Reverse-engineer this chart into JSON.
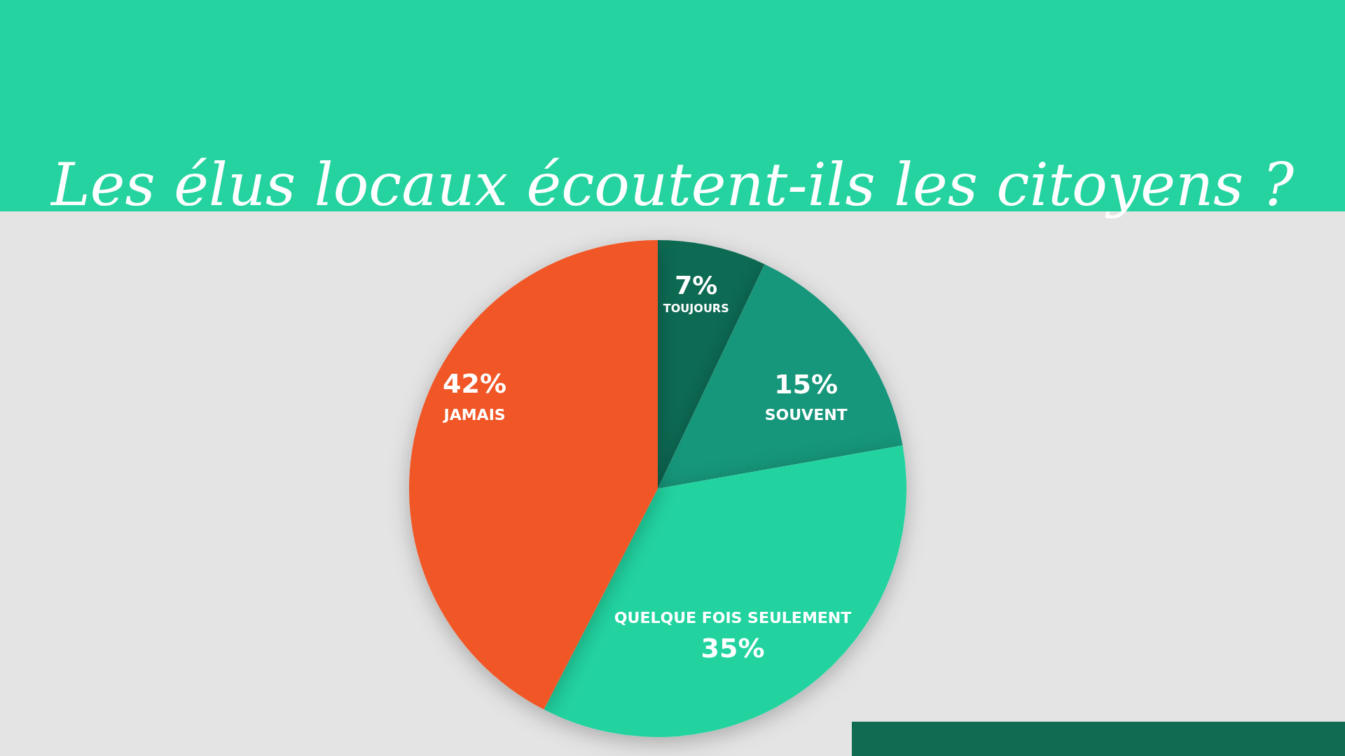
{
  "chart_data": {
    "type": "pie",
    "title": "Les élus locaux écoutent-ils les citoyens ?",
    "categories": [
      "TOUJOURS",
      "SOUVENT",
      "QUELQUE FOIS SEULEMENT",
      "JAMAIS"
    ],
    "values": [
      7,
      15,
      35,
      42
    ],
    "colors": [
      "#116b52",
      "#17967a",
      "#24d3a0",
      "#f05628"
    ],
    "value_labels": [
      "7%",
      "15%",
      "35%",
      "42%"
    ],
    "legend": false
  }
}
